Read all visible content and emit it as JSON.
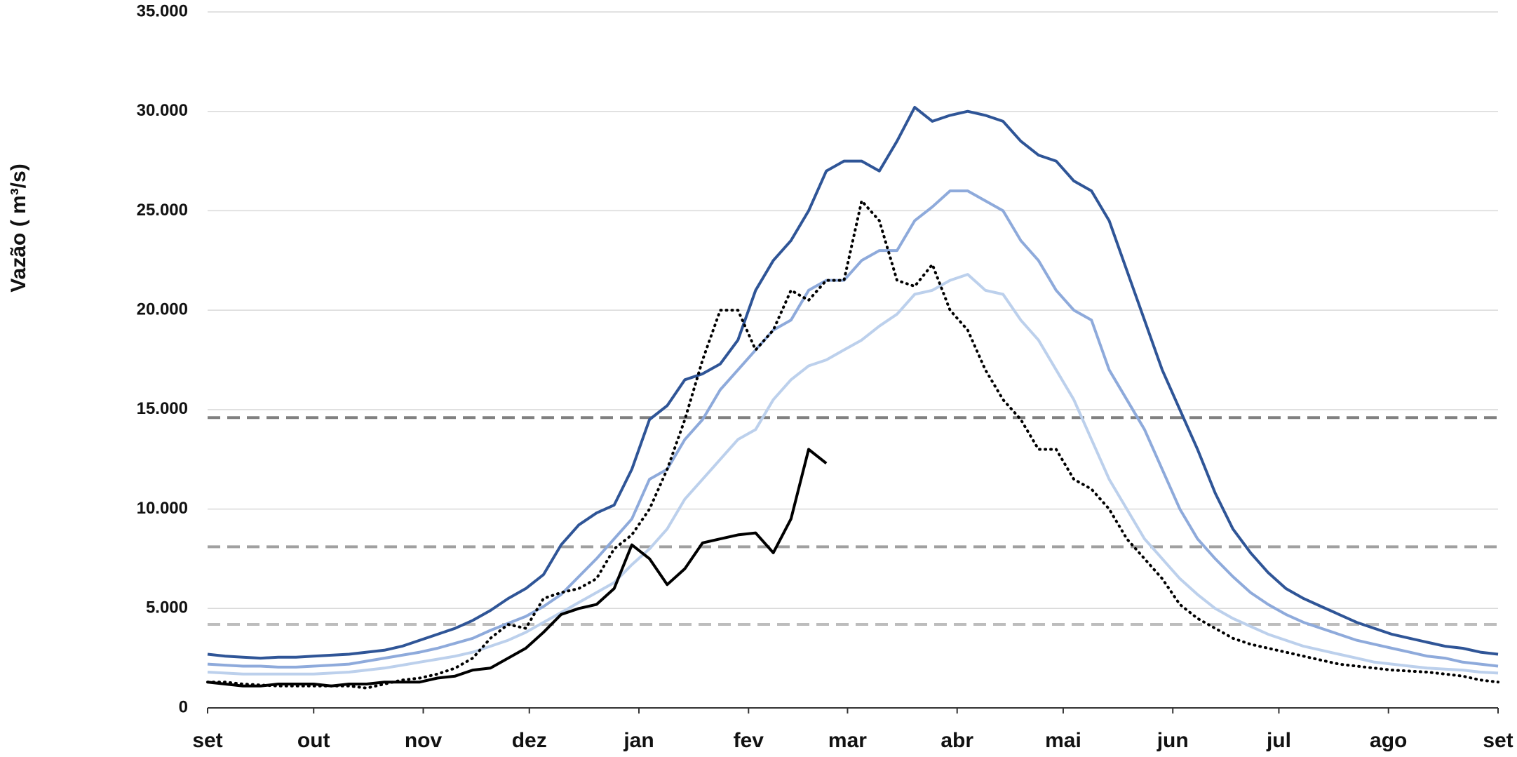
{
  "chart_data": {
    "type": "line",
    "y_axis_label": "Vazão ( m³/s)",
    "xlim": [
      0,
      365
    ],
    "xticks": [
      {
        "value": 0,
        "label": "set"
      },
      {
        "value": 30,
        "label": "out"
      },
      {
        "value": 61,
        "label": "nov"
      },
      {
        "value": 91,
        "label": "dez"
      },
      {
        "value": 122,
        "label": "jan"
      },
      {
        "value": 153,
        "label": "fev"
      },
      {
        "value": 181,
        "label": "mar"
      },
      {
        "value": 212,
        "label": "abr"
      },
      {
        "value": 242,
        "label": "mai"
      },
      {
        "value": 273,
        "label": "jun"
      },
      {
        "value": 303,
        "label": "jul"
      },
      {
        "value": 334,
        "label": "ago"
      },
      {
        "value": 365,
        "label": "set"
      }
    ],
    "ylim": [
      0,
      35000
    ],
    "yticks": [
      0,
      {
        "value": 5000,
        "label": "5.000"
      },
      {
        "value": 10000,
        "label": "10.000"
      },
      {
        "value": 15000,
        "label": "15.000"
      },
      {
        "value": 20000,
        "label": "20.000"
      },
      {
        "value": 25000,
        "label": "25.000"
      },
      {
        "value": 30000,
        "label": "30.000"
      },
      {
        "value": 35000,
        "label": "35.000"
      }
    ],
    "grid": true,
    "x": [
      0,
      5,
      10,
      15,
      20,
      25,
      30,
      35,
      40,
      45,
      50,
      55,
      60,
      65,
      70,
      75,
      80,
      85,
      90,
      95,
      100,
      105,
      110,
      115,
      120,
      125,
      130,
      135,
      140,
      145,
      150,
      155,
      160,
      165,
      170,
      175,
      180,
      185,
      190,
      195,
      200,
      205,
      210,
      215,
      220,
      225,
      230,
      235,
      240,
      245,
      250,
      255,
      260,
      265,
      270,
      275,
      280,
      285,
      290,
      295,
      300,
      305,
      310,
      315,
      320,
      325,
      330,
      335,
      340,
      345,
      350,
      355,
      360,
      365
    ],
    "reference_lines": [
      {
        "value": 14600,
        "color": "#808080"
      },
      {
        "value": 8100,
        "color": "#a0a0a0"
      },
      {
        "value": 4200,
        "color": "#bdbdbd"
      }
    ],
    "series": [
      {
        "color": "#bcd0ec",
        "style": "solid",
        "values": [
          1800,
          1750,
          1700,
          1700,
          1700,
          1700,
          1700,
          1750,
          1800,
          1900,
          2000,
          2150,
          2300,
          2450,
          2600,
          2800,
          3100,
          3400,
          3800,
          4300,
          4800,
          5300,
          5800,
          6300,
          7200,
          8000,
          9000,
          10500,
          11500,
          12500,
          13500,
          14000,
          15500,
          16500,
          17200,
          17500,
          18000,
          18500,
          19200,
          19800,
          20800,
          21000,
          21500,
          21800,
          21000,
          20800,
          19500,
          18500,
          17000,
          15500,
          13500,
          11500,
          10000,
          8500,
          7500,
          6500,
          5700,
          5000,
          4500,
          4100,
          3700,
          3400,
          3100,
          2900,
          2700,
          2500,
          2300,
          2200,
          2100,
          2000,
          1950,
          1900,
          1800,
          1750
        ]
      },
      {
        "color": "#8eaadb",
        "style": "solid",
        "values": [
          2200,
          2150,
          2100,
          2100,
          2050,
          2050,
          2100,
          2150,
          2200,
          2350,
          2500,
          2650,
          2800,
          3000,
          3250,
          3500,
          3900,
          4250,
          4600,
          5100,
          5700,
          6600,
          7500,
          8500,
          9500,
          11500,
          12000,
          13500,
          14500,
          16000,
          17000,
          18000,
          19000,
          19500,
          21000,
          21500,
          21500,
          22500,
          23000,
          23000,
          24500,
          25200,
          26000,
          26000,
          25500,
          25000,
          23500,
          22500,
          21000,
          20000,
          19500,
          17000,
          15500,
          14000,
          12000,
          10000,
          8500,
          7500,
          6600,
          5800,
          5200,
          4700,
          4300,
          4000,
          3700,
          3400,
          3200,
          3000,
          2800,
          2600,
          2500,
          2300,
          2200,
          2100
        ]
      },
      {
        "color": "#2f5597",
        "style": "solid",
        "values": [
          2700,
          2600,
          2550,
          2500,
          2550,
          2550,
          2600,
          2650,
          2700,
          2800,
          2900,
          3100,
          3400,
          3700,
          4000,
          4400,
          4900,
          5500,
          6000,
          6700,
          8200,
          9200,
          9800,
          10200,
          12000,
          14500,
          15200,
          16500,
          16800,
          17300,
          18500,
          21000,
          22500,
          23500,
          25000,
          27000,
          27500,
          27500,
          27000,
          28500,
          30200,
          29500,
          29800,
          30000,
          29800,
          29500,
          28500,
          27800,
          27500,
          26500,
          26000,
          24500,
          22000,
          19500,
          17000,
          15000,
          13000,
          10800,
          9000,
          7800,
          6800,
          6000,
          5500,
          5100,
          4700,
          4300,
          4000,
          3700,
          3500,
          3300,
          3100,
          3000,
          2800,
          2700
        ]
      },
      {
        "color": "#000000",
        "style": "dotted",
        "values": [
          1300,
          1300,
          1200,
          1150,
          1100,
          1100,
          1100,
          1100,
          1100,
          1000,
          1200,
          1400,
          1500,
          1700,
          2000,
          2500,
          3500,
          4200,
          4000,
          5500,
          5800,
          6000,
          6500,
          8000,
          8700,
          10000,
          12000,
          14500,
          17500,
          20000,
          20000,
          18000,
          19000,
          21000,
          20500,
          21500,
          21500,
          25500,
          24500,
          21500,
          21200,
          22300,
          20000,
          19000,
          17000,
          15500,
          14500,
          13000,
          13000,
          11500,
          11000,
          10000,
          8500,
          7500,
          6500,
          5200,
          4500,
          4000,
          3500,
          3200,
          3000,
          2800,
          2600,
          2400,
          2200,
          2100,
          2000,
          1900,
          1850,
          1800,
          1700,
          1600,
          1400,
          1300
        ]
      },
      {
        "color": "#000000",
        "style": "solid",
        "values": [
          1300,
          1200,
          1100,
          1100,
          1200,
          1200,
          1200,
          1100,
          1200,
          1200,
          1300,
          1300,
          1300,
          1500,
          1600,
          1900,
          2000,
          2500,
          3000,
          3800,
          4700,
          5000,
          5200,
          6000,
          8200,
          7500,
          6200,
          7000,
          8300,
          8500,
          8700,
          8800,
          7800,
          9500,
          13000,
          12300,
          null,
          null,
          null,
          null,
          null,
          null,
          null,
          null,
          null,
          null,
          null,
          null,
          null,
          null,
          null,
          null,
          null,
          null,
          null,
          null,
          null,
          null,
          null,
          null,
          null,
          null,
          null,
          null,
          null,
          null,
          null,
          null,
          null,
          null,
          null,
          null,
          null,
          null
        ]
      }
    ]
  }
}
